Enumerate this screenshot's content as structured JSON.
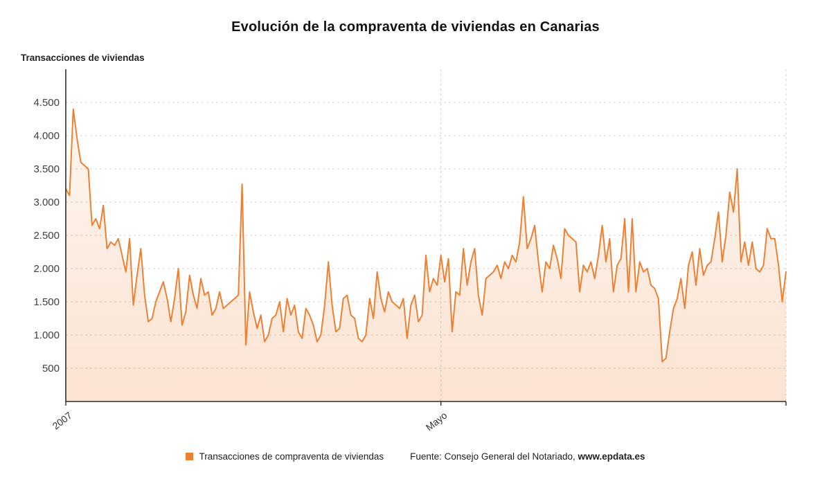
{
  "page": {
    "title": "Evolución de la compraventa de viviendas en Canarias",
    "axis_title": "Transacciones de viviendas",
    "legend_label": "Transacciones de compraventa de viviendas",
    "source_prefix": "Fuente: Consejo General del Notariado, ",
    "source_site": "www.epdata.es"
  },
  "colors": {
    "line": "#ed8032",
    "grid": "#cfcfcf",
    "axis": "#2b2b2b",
    "tick_text": "#404040",
    "x_label_text": "#333333"
  },
  "chart_data": {
    "type": "line",
    "title": "Evolución de la compraventa de viviendas en Canarias",
    "xlabel": "",
    "ylabel": "Transacciones de viviendas",
    "ylim": [
      0,
      5000
    ],
    "grid": "dashed",
    "legend_position": "bottom",
    "y_ticks": [
      500,
      1000,
      1500,
      2000,
      2500,
      3000,
      3500,
      4000,
      4500
    ],
    "y_tick_labels": [
      "500",
      "1.000",
      "1.500",
      "2.000",
      "2.500",
      "3.000",
      "3.500",
      "4.000",
      "4.500"
    ],
    "x_ticks": [
      {
        "index": 0,
        "label": "2007"
      },
      {
        "index": 100,
        "label": "Mayo"
      }
    ],
    "series": [
      {
        "name": "Transacciones de compraventa de viviendas",
        "color": "#ed8032",
        "values": [
          3200,
          3100,
          4400,
          3950,
          3600,
          3550,
          3500,
          2650,
          2750,
          2600,
          2950,
          2300,
          2400,
          2350,
          2450,
          2200,
          1950,
          2450,
          1450,
          1900,
          2300,
          1600,
          1200,
          1250,
          1500,
          1650,
          1800,
          1550,
          1200,
          1550,
          2000,
          1150,
          1350,
          1900,
          1600,
          1400,
          1850,
          1600,
          1650,
          1300,
          1400,
          1650,
          1400,
          1450,
          1500,
          1550,
          1600,
          3270,
          850,
          1650,
          1350,
          1100,
          1300,
          900,
          1000,
          1250,
          1300,
          1500,
          1050,
          1550,
          1300,
          1450,
          1050,
          950,
          1400,
          1300,
          1150,
          900,
          1000,
          1450,
          2100,
          1450,
          1050,
          1100,
          1550,
          1600,
          1300,
          1250,
          950,
          900,
          1000,
          1550,
          1250,
          1950,
          1550,
          1350,
          1650,
          1500,
          1450,
          1400,
          1550,
          950,
          1450,
          1600,
          1200,
          1300,
          2200,
          1650,
          1850,
          1750,
          2200,
          1800,
          2150,
          1050,
          1650,
          1600,
          2300,
          1750,
          2100,
          2300,
          1600,
          1300,
          1850,
          1900,
          1950,
          2050,
          1850,
          2100,
          2000,
          2200,
          2100,
          2400,
          3080,
          2300,
          2450,
          2650,
          2100,
          1650,
          2100,
          2000,
          2350,
          2150,
          1850,
          2600,
          2500,
          2450,
          2400,
          1650,
          2050,
          1950,
          2100,
          1850,
          2200,
          2650,
          2100,
          2450,
          1650,
          2050,
          2150,
          2750,
          1650,
          2750,
          1650,
          2100,
          1950,
          2000,
          1750,
          1700,
          1550,
          600,
          650,
          1050,
          1400,
          1550,
          1850,
          1400,
          2050,
          2250,
          1750,
          2300,
          1900,
          2050,
          2100,
          2450,
          2850,
          2100,
          2500,
          3150,
          2850,
          3500,
          2100,
          2400,
          2050,
          2400,
          2000,
          1950,
          2050,
          2600,
          2450,
          2450,
          2050,
          1500,
          1950
        ]
      }
    ]
  }
}
